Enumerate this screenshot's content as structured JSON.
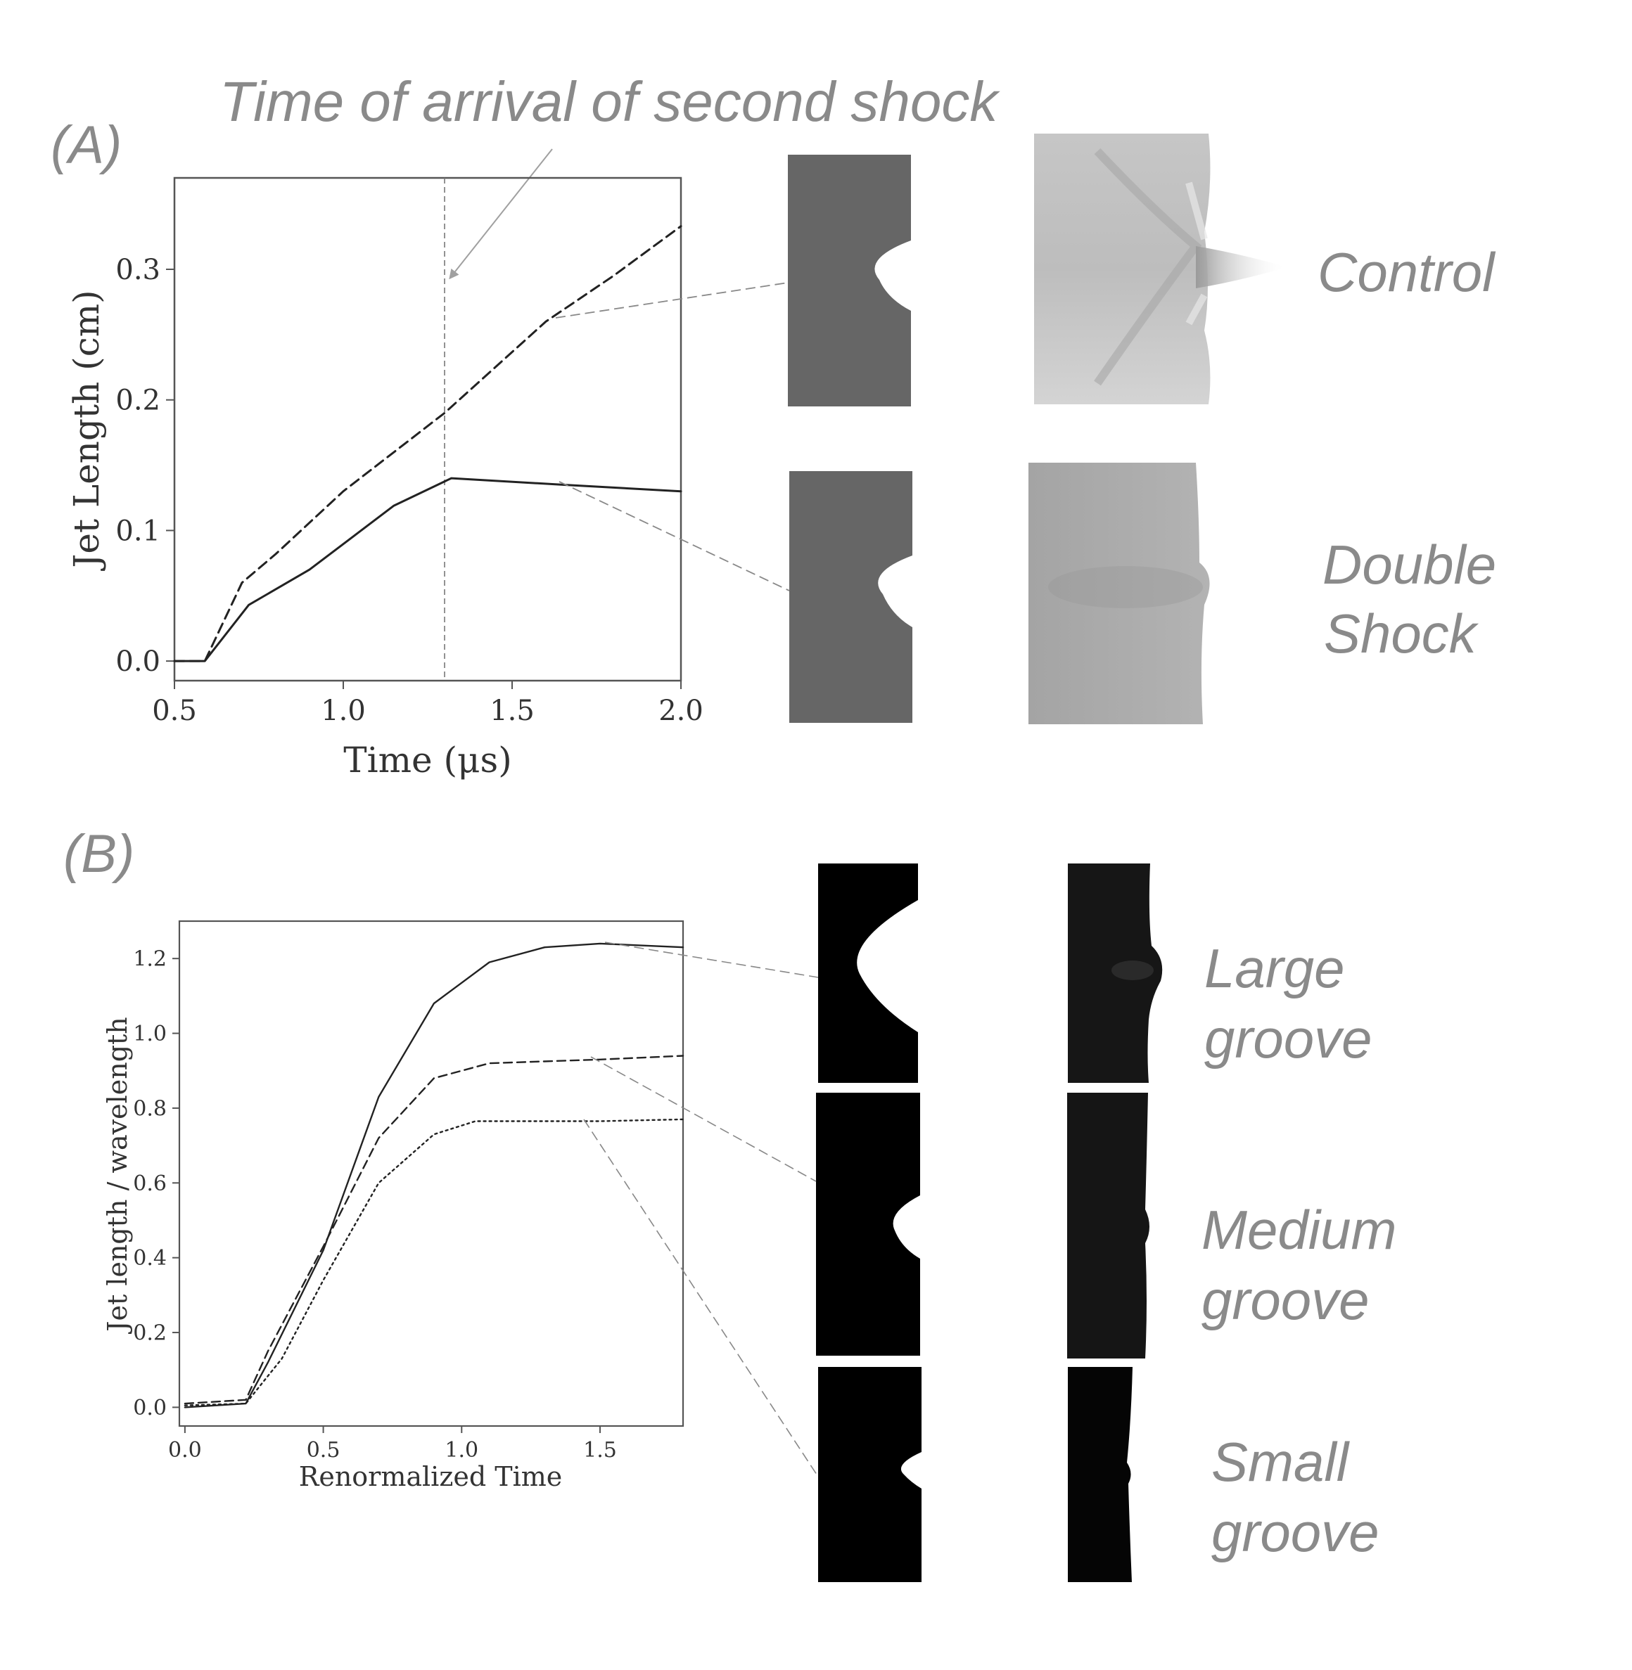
{
  "panel_a": {
    "label": "(A)",
    "annotation": "Time of arrival of second shock",
    "labels": {
      "control": "Control",
      "double_line1": "Double",
      "double_line2": "Shock"
    }
  },
  "panel_b": {
    "label": "(B)",
    "labels": {
      "large_1": "Large",
      "large_2": "groove",
      "medium_1": "Medium",
      "medium_2": "groove",
      "small_1": "Small",
      "small_2": "groove"
    }
  },
  "colors": {
    "annotation": "#8a8a8a",
    "groove_a": "#666666",
    "groove_b": "#000000",
    "axis": "#333333"
  },
  "chart_data": [
    {
      "type": "line",
      "xlabel": "Time (μs)",
      "ylabel": "Jet Length (cm)",
      "xlim": [
        0.5,
        2.0
      ],
      "ylim": [
        -0.015,
        0.37
      ],
      "xticks": [
        "0.5",
        "1.0",
        "1.5",
        "2.0"
      ],
      "yticks": [
        "0.0",
        "0.1",
        "0.2",
        "0.3"
      ],
      "marker_x": 1.3,
      "series": [
        {
          "style": "dashed",
          "points": [
            [
              0.5,
              0
            ],
            [
              0.59,
              0
            ],
            [
              0.7,
              0.06
            ],
            [
              0.8,
              0.082
            ],
            [
              1.0,
              0.13
            ],
            [
              1.3,
              0.19
            ],
            [
              1.6,
              0.26
            ],
            [
              1.8,
              0.295
            ],
            [
              2.0,
              0.333
            ]
          ]
        },
        {
          "style": "solid",
          "points": [
            [
              0.5,
              0
            ],
            [
              0.59,
              0
            ],
            [
              0.72,
              0.043
            ],
            [
              0.9,
              0.07
            ],
            [
              1.15,
              0.119
            ],
            [
              1.32,
              0.14
            ],
            [
              1.65,
              0.135
            ],
            [
              2.0,
              0.13
            ]
          ]
        }
      ]
    },
    {
      "type": "line",
      "xlabel": "Renormalized Time",
      "ylabel": "Jet length / wavelength",
      "xlim": [
        -0.02,
        1.8
      ],
      "ylim": [
        -0.05,
        1.3
      ],
      "xticks": [
        "0.0",
        "0.5",
        "1.0",
        "1.5"
      ],
      "yticks": [
        "0.0",
        "0.2",
        "0.4",
        "0.6",
        "0.8",
        "1.0",
        "1.2"
      ],
      "series": [
        {
          "style": "solid",
          "points": [
            [
              0,
              0
            ],
            [
              0.22,
              0.01
            ],
            [
              0.3,
              0.12
            ],
            [
              0.5,
              0.42
            ],
            [
              0.7,
              0.83
            ],
            [
              0.9,
              1.08
            ],
            [
              1.1,
              1.19
            ],
            [
              1.3,
              1.23
            ],
            [
              1.5,
              1.24
            ],
            [
              1.8,
              1.23
            ]
          ]
        },
        {
          "style": "dashed",
          "points": [
            [
              0,
              0.01
            ],
            [
              0.22,
              0.02
            ],
            [
              0.3,
              0.15
            ],
            [
              0.5,
              0.43
            ],
            [
              0.7,
              0.72
            ],
            [
              0.9,
              0.88
            ],
            [
              1.1,
              0.92
            ],
            [
              1.5,
              0.93
            ],
            [
              1.8,
              0.94
            ]
          ]
        },
        {
          "style": "dotted",
          "points": [
            [
              0,
              0.005
            ],
            [
              0.22,
              0.01
            ],
            [
              0.35,
              0.13
            ],
            [
              0.5,
              0.34
            ],
            [
              0.7,
              0.6
            ],
            [
              0.9,
              0.73
            ],
            [
              1.05,
              0.765
            ],
            [
              1.3,
              0.765
            ],
            [
              1.5,
              0.765
            ],
            [
              1.8,
              0.77
            ]
          ]
        }
      ]
    }
  ]
}
